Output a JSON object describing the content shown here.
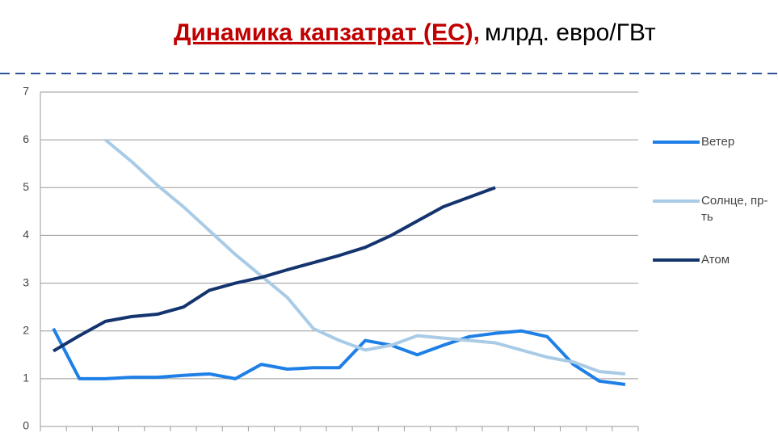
{
  "chart_data": {
    "type": "line",
    "title": "Динамика капзатрат (ЕС),",
    "subtitle": "млрд. евро/ГВт",
    "categories": [
      null,
      null,
      null,
      null,
      null,
      null,
      null,
      null,
      null,
      null,
      null,
      null,
      null,
      null,
      null,
      null,
      null,
      null,
      null,
      null,
      null,
      null,
      null
    ],
    "series": [
      {
        "name": "Ветер",
        "color": "#1e7fe6",
        "values": [
          2.05,
          1.0,
          1.0,
          1.03,
          1.03,
          1.07,
          1.1,
          1.0,
          1.3,
          1.2,
          1.23,
          1.23,
          1.8,
          1.7,
          1.5,
          1.7,
          1.88,
          1.95,
          2.0,
          1.88,
          1.3,
          0.95,
          0.88
        ]
      },
      {
        "name": "Солнце, пр-ть",
        "color": "#a9cbe6",
        "values": [
          null,
          null,
          6.0,
          5.55,
          5.05,
          4.6,
          4.1,
          3.6,
          3.15,
          2.7,
          2.05,
          1.8,
          1.6,
          1.7,
          1.9,
          1.85,
          1.8,
          1.75,
          1.6,
          1.45,
          1.35,
          1.15,
          1.1
        ]
      },
      {
        "name": "Атом",
        "color": "#14346e",
        "values": [
          1.58,
          1.9,
          2.2,
          2.3,
          2.35,
          2.5,
          2.85,
          3.0,
          3.12,
          3.28,
          3.43,
          3.58,
          3.75,
          4.0,
          4.3,
          4.6,
          4.8,
          5.0,
          null,
          null,
          null,
          null,
          null
        ]
      }
    ],
    "ylim": [
      0,
      7
    ],
    "yticks": [
      0,
      1,
      2,
      3,
      4,
      5,
      6,
      7
    ],
    "grid": true
  }
}
